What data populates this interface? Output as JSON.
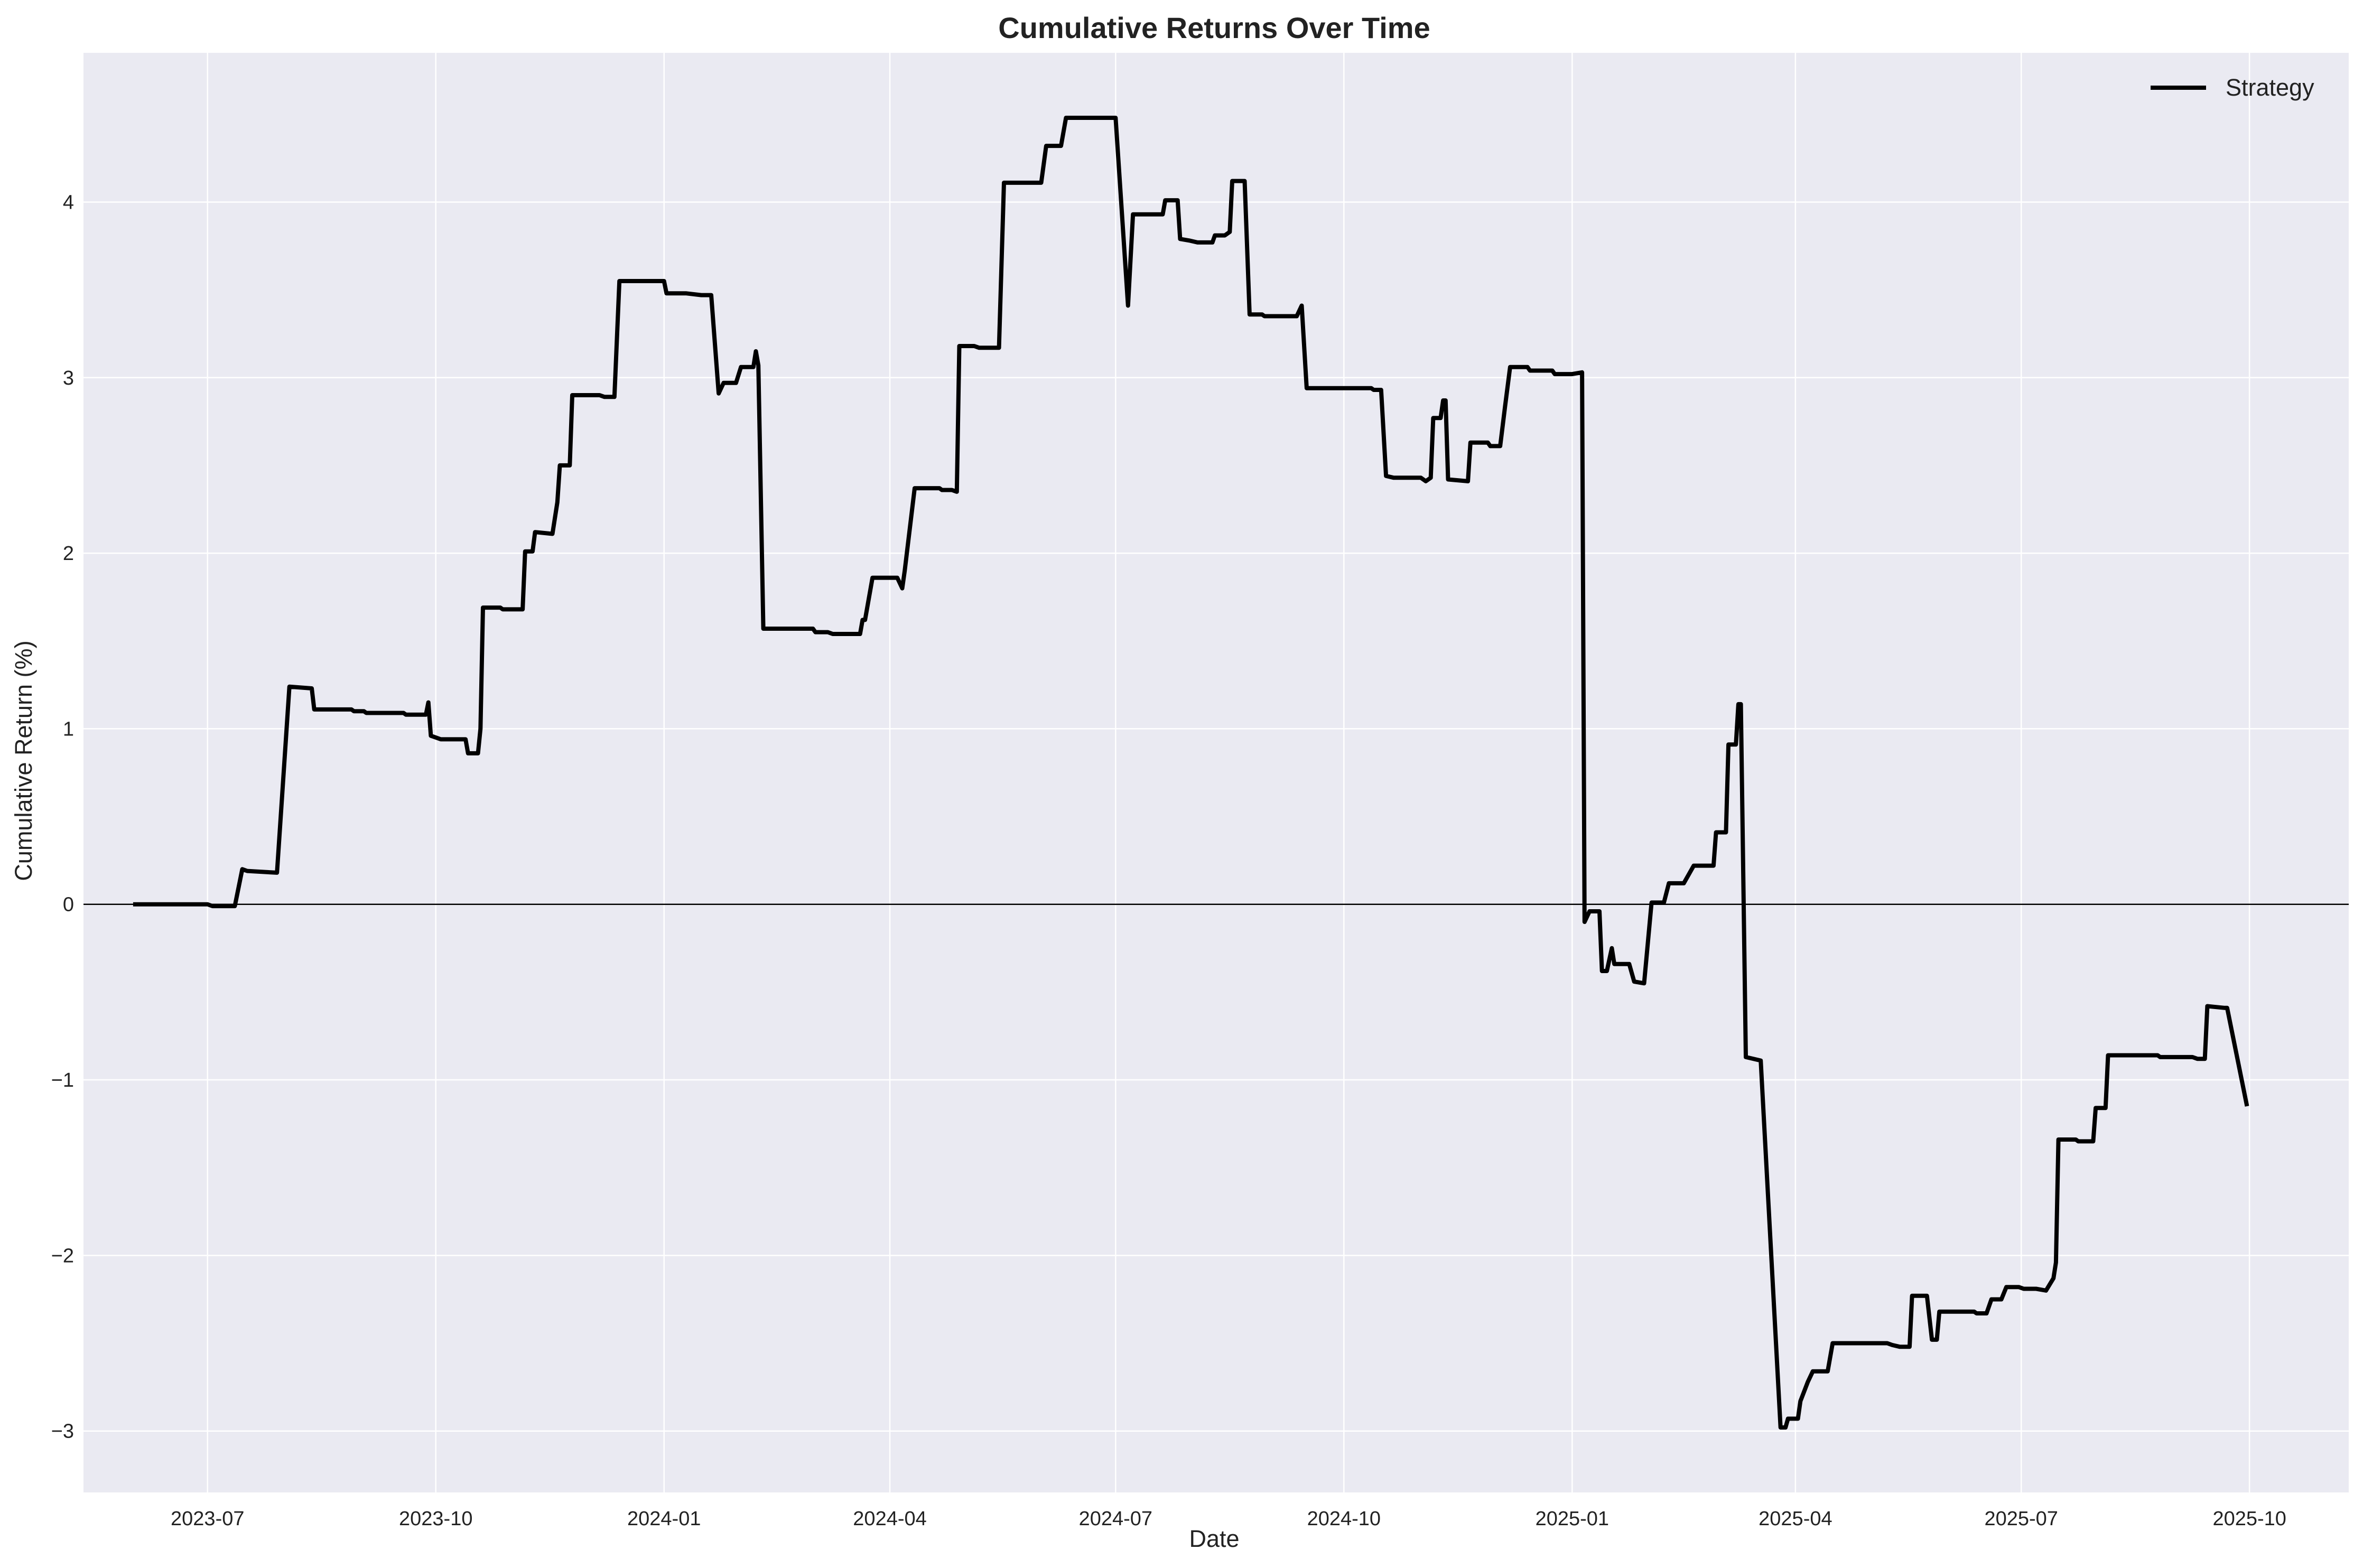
{
  "chart_data": {
    "type": "line",
    "title": "Cumulative Returns Over Time",
    "xlabel": "Date",
    "ylabel": "Cumulative Return (%)",
    "x_range": [
      "2023-05-12",
      "2025-11-10"
    ],
    "ylim": [
      -3.35,
      4.85
    ],
    "x_ticks": [
      {
        "date": "2023-07-01",
        "label": "2023-07"
      },
      {
        "date": "2023-10-01",
        "label": "2023-10"
      },
      {
        "date": "2024-01-01",
        "label": "2024-01"
      },
      {
        "date": "2024-04-01",
        "label": "2024-04"
      },
      {
        "date": "2024-07-01",
        "label": "2024-07"
      },
      {
        "date": "2024-10-01",
        "label": "2024-10"
      },
      {
        "date": "2025-01-01",
        "label": "2025-01"
      },
      {
        "date": "2025-04-01",
        "label": "2025-04"
      },
      {
        "date": "2025-07-01",
        "label": "2025-07"
      },
      {
        "date": "2025-10-01",
        "label": "2025-10"
      }
    ],
    "y_ticks": [
      {
        "value": -3,
        "label": "−3"
      },
      {
        "value": -2,
        "label": "−2"
      },
      {
        "value": -1,
        "label": "−1"
      },
      {
        "value": 0,
        "label": "0"
      },
      {
        "value": 1,
        "label": "1"
      },
      {
        "value": 2,
        "label": "2"
      },
      {
        "value": 3,
        "label": "3"
      },
      {
        "value": 4,
        "label": "4"
      }
    ],
    "grid": true,
    "zero_line": true,
    "legend": {
      "placement": "top-right"
    },
    "colors": {
      "background": "#eaeaf2",
      "grid": "#ffffff",
      "line": "#000000"
    },
    "series": [
      {
        "name": "Strategy",
        "points": [
          [
            "2023-06-01",
            0.0
          ],
          [
            "2023-07-01",
            0.0
          ],
          [
            "2023-07-03",
            -0.01
          ],
          [
            "2023-07-12",
            -0.01
          ],
          [
            "2023-07-15",
            0.2
          ],
          [
            "2023-07-17",
            0.19
          ],
          [
            "2023-07-29",
            0.18
          ],
          [
            "2023-08-03",
            1.24
          ],
          [
            "2023-08-12",
            1.23
          ],
          [
            "2023-08-13",
            1.11
          ],
          [
            "2023-08-28",
            1.11
          ],
          [
            "2023-08-29",
            1.1
          ],
          [
            "2023-09-02",
            1.1
          ],
          [
            "2023-09-03",
            1.09
          ],
          [
            "2023-09-18",
            1.09
          ],
          [
            "2023-09-19",
            1.08
          ],
          [
            "2023-09-27",
            1.08
          ],
          [
            "2023-09-28",
            1.15
          ],
          [
            "2023-09-29",
            0.96
          ],
          [
            "2023-10-01",
            0.95
          ],
          [
            "2023-10-03",
            0.94
          ],
          [
            "2023-10-13",
            0.94
          ],
          [
            "2023-10-14",
            0.86
          ],
          [
            "2023-10-18",
            0.86
          ],
          [
            "2023-10-19",
            1.0
          ],
          [
            "2023-10-20",
            1.69
          ],
          [
            "2023-10-27",
            1.69
          ],
          [
            "2023-10-28",
            1.68
          ],
          [
            "2023-11-05",
            1.68
          ],
          [
            "2023-11-06",
            2.01
          ],
          [
            "2023-11-09",
            2.01
          ],
          [
            "2023-11-10",
            2.12
          ],
          [
            "2023-11-17",
            2.11
          ],
          [
            "2023-11-19",
            2.29
          ],
          [
            "2023-11-20",
            2.5
          ],
          [
            "2023-11-24",
            2.5
          ],
          [
            "2023-11-25",
            2.9
          ],
          [
            "2023-12-06",
            2.9
          ],
          [
            "2023-12-08",
            2.89
          ],
          [
            "2023-12-12",
            2.89
          ],
          [
            "2023-12-14",
            3.55
          ],
          [
            "2024-01-01",
            3.55
          ],
          [
            "2024-01-02",
            3.48
          ],
          [
            "2024-01-10",
            3.48
          ],
          [
            "2024-01-16",
            3.47
          ],
          [
            "2024-01-20",
            3.47
          ],
          [
            "2024-01-23",
            2.91
          ],
          [
            "2024-01-25",
            2.97
          ],
          [
            "2024-01-30",
            2.97
          ],
          [
            "2024-02-01",
            3.06
          ],
          [
            "2024-02-06",
            3.06
          ],
          [
            "2024-02-07",
            3.15
          ],
          [
            "2024-02-08",
            3.07
          ],
          [
            "2024-02-10",
            1.57
          ],
          [
            "2024-03-01",
            1.57
          ],
          [
            "2024-03-02",
            1.55
          ],
          [
            "2024-03-07",
            1.55
          ],
          [
            "2024-03-09",
            1.54
          ],
          [
            "2024-03-20",
            1.54
          ],
          [
            "2024-03-21",
            1.62
          ],
          [
            "2024-03-22",
            1.62
          ],
          [
            "2024-03-25",
            1.86
          ],
          [
            "2024-04-04",
            1.86
          ],
          [
            "2024-04-06",
            1.8
          ],
          [
            "2024-04-07",
            1.9
          ],
          [
            "2024-04-11",
            2.37
          ],
          [
            "2024-04-21",
            2.37
          ],
          [
            "2024-04-22",
            2.36
          ],
          [
            "2024-04-26",
            2.36
          ],
          [
            "2024-04-28",
            2.35
          ],
          [
            "2024-04-29",
            3.18
          ],
          [
            "2024-05-05",
            3.18
          ],
          [
            "2024-05-07",
            3.17
          ],
          [
            "2024-05-15",
            3.17
          ],
          [
            "2024-05-17",
            4.11
          ],
          [
            "2024-05-25",
            4.11
          ],
          [
            "2024-05-26",
            4.11
          ],
          [
            "2024-06-01",
            4.11
          ],
          [
            "2024-06-03",
            4.32
          ],
          [
            "2024-06-09",
            4.32
          ],
          [
            "2024-06-11",
            4.48
          ],
          [
            "2024-07-01",
            4.48
          ],
          [
            "2024-07-06",
            3.41
          ],
          [
            "2024-07-08",
            3.93
          ],
          [
            "2024-07-20",
            3.93
          ],
          [
            "2024-07-21",
            4.01
          ],
          [
            "2024-07-26",
            4.01
          ],
          [
            "2024-07-27",
            3.79
          ],
          [
            "2024-07-31",
            3.78
          ],
          [
            "2024-08-03",
            3.77
          ],
          [
            "2024-08-09",
            3.77
          ],
          [
            "2024-08-10",
            3.81
          ],
          [
            "2024-08-14",
            3.81
          ],
          [
            "2024-08-16",
            3.83
          ],
          [
            "2024-08-17",
            4.12
          ],
          [
            "2024-08-22",
            4.12
          ],
          [
            "2024-08-24",
            3.36
          ],
          [
            "2024-08-29",
            3.36
          ],
          [
            "2024-08-30",
            3.35
          ],
          [
            "2024-09-12",
            3.35
          ],
          [
            "2024-09-14",
            3.41
          ],
          [
            "2024-09-16",
            2.94
          ],
          [
            "2024-10-12",
            2.94
          ],
          [
            "2024-10-13",
            2.93
          ],
          [
            "2024-10-16",
            2.93
          ],
          [
            "2024-10-18",
            2.44
          ],
          [
            "2024-10-21",
            2.43
          ],
          [
            "2024-11-01",
            2.43
          ],
          [
            "2024-11-03",
            2.41
          ],
          [
            "2024-11-05",
            2.43
          ],
          [
            "2024-11-06",
            2.77
          ],
          [
            "2024-11-09",
            2.77
          ],
          [
            "2024-11-10",
            2.87
          ],
          [
            "2024-11-11",
            2.87
          ],
          [
            "2024-11-12",
            2.42
          ],
          [
            "2024-11-20",
            2.41
          ],
          [
            "2024-11-21",
            2.63
          ],
          [
            "2024-11-28",
            2.63
          ],
          [
            "2024-11-29",
            2.61
          ],
          [
            "2024-12-03",
            2.61
          ],
          [
            "2024-12-05",
            2.84
          ],
          [
            "2024-12-07",
            3.06
          ],
          [
            "2024-12-14",
            3.06
          ],
          [
            "2024-12-15",
            3.04
          ],
          [
            "2024-12-24",
            3.04
          ],
          [
            "2024-12-25",
            3.02
          ],
          [
            "2025-01-01",
            3.02
          ],
          [
            "2025-01-05",
            3.03
          ],
          [
            "2025-01-06",
            -0.1
          ],
          [
            "2025-01-08",
            -0.04
          ],
          [
            "2025-01-12",
            -0.04
          ],
          [
            "2025-01-13",
            -0.38
          ],
          [
            "2025-01-15",
            -0.38
          ],
          [
            "2025-01-17",
            -0.25
          ],
          [
            "2025-01-18",
            -0.34
          ],
          [
            "2025-01-24",
            -0.34
          ],
          [
            "2025-01-26",
            -0.44
          ],
          [
            "2025-01-30",
            -0.45
          ],
          [
            "2025-02-02",
            0.01
          ],
          [
            "2025-02-07",
            0.01
          ],
          [
            "2025-02-09",
            0.12
          ],
          [
            "2025-02-15",
            0.12
          ],
          [
            "2025-02-19",
            0.22
          ],
          [
            "2025-02-27",
            0.22
          ],
          [
            "2025-02-28",
            0.41
          ],
          [
            "2025-03-04",
            0.41
          ],
          [
            "2025-03-05",
            0.91
          ],
          [
            "2025-03-08",
            0.91
          ],
          [
            "2025-03-09",
            1.14
          ],
          [
            "2025-03-10",
            1.14
          ],
          [
            "2025-03-12",
            -0.87
          ],
          [
            "2025-03-18",
            -0.89
          ],
          [
            "2025-03-26",
            -2.98
          ],
          [
            "2025-03-28",
            -2.98
          ],
          [
            "2025-03-29",
            -2.93
          ],
          [
            "2025-04-02",
            -2.93
          ],
          [
            "2025-04-03",
            -2.83
          ],
          [
            "2025-04-06",
            -2.72
          ],
          [
            "2025-04-08",
            -2.66
          ],
          [
            "2025-04-14",
            -2.66
          ],
          [
            "2025-04-16",
            -2.5
          ],
          [
            "2025-05-08",
            -2.5
          ],
          [
            "2025-05-10",
            -2.51
          ],
          [
            "2025-05-13",
            -2.52
          ],
          [
            "2025-05-17",
            -2.52
          ],
          [
            "2025-05-18",
            -2.23
          ],
          [
            "2025-05-24",
            -2.23
          ],
          [
            "2025-05-26",
            -2.48
          ],
          [
            "2025-05-28",
            -2.48
          ],
          [
            "2025-05-29",
            -2.32
          ],
          [
            "2025-06-12",
            -2.32
          ],
          [
            "2025-06-13",
            -2.33
          ],
          [
            "2025-06-17",
            -2.33
          ],
          [
            "2025-06-19",
            -2.25
          ],
          [
            "2025-06-23",
            -2.25
          ],
          [
            "2025-06-25",
            -2.18
          ],
          [
            "2025-06-30",
            -2.18
          ],
          [
            "2025-07-02",
            -2.19
          ],
          [
            "2025-07-07",
            -2.19
          ],
          [
            "2025-07-11",
            -2.2
          ],
          [
            "2025-07-14",
            -2.13
          ],
          [
            "2025-07-15",
            -2.04
          ],
          [
            "2025-07-16",
            -1.34
          ],
          [
            "2025-07-23",
            -1.34
          ],
          [
            "2025-07-24",
            -1.35
          ],
          [
            "2025-07-30",
            -1.35
          ],
          [
            "2025-07-31",
            -1.16
          ],
          [
            "2025-08-04",
            -1.16
          ],
          [
            "2025-08-05",
            -0.86
          ],
          [
            "2025-08-25",
            -0.86
          ],
          [
            "2025-08-26",
            -0.87
          ],
          [
            "2025-09-08",
            -0.87
          ],
          [
            "2025-09-10",
            -0.88
          ],
          [
            "2025-09-13",
            -0.88
          ],
          [
            "2025-09-14",
            -0.58
          ],
          [
            "2025-09-21",
            -0.59
          ],
          [
            "2025-09-22",
            -0.59
          ],
          [
            "2025-09-30",
            -1.15
          ]
        ]
      }
    ]
  }
}
